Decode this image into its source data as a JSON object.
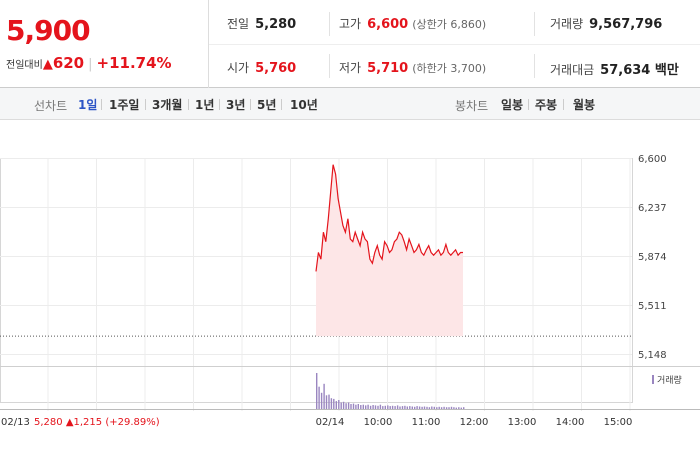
{
  "summary": {
    "price": "5,900",
    "change_label": "전일대비",
    "change_arrow": "▲",
    "change_value": "620",
    "change_rate": "+11.74%",
    "prev_close_label": "전일",
    "prev_close": "5,280",
    "open_label": "시가",
    "open": "5,760",
    "high_label": "고가",
    "high": "6,600",
    "upper_limit": "(상한가 6,860)",
    "low_label": "저가",
    "low": "5,710",
    "lower_limit": "(하한가 3,700)",
    "volume_label": "거래량",
    "volume": "9,567,796",
    "amount_label": "거래대금",
    "amount": "57,634 백만"
  },
  "tabs": {
    "line_label": "선차트",
    "line_tabs": [
      "1일",
      "1주일",
      "3개월",
      "1년",
      "3년",
      "5년",
      "10년"
    ],
    "active": "1일",
    "candle_label": "봉차트",
    "candle_tabs": [
      "일봉",
      "주봉",
      "월봉"
    ]
  },
  "chart_data": {
    "type": "line",
    "y_ticks": [
      "6,600",
      "6,237",
      "5,874",
      "5,511",
      "5,148"
    ],
    "ylim": [
      5148,
      6600
    ],
    "x_ticks": [
      "02/14",
      "10:00",
      "11:00",
      "12:00",
      "13:00",
      "14:00",
      "15:00"
    ],
    "prev_day_label": "02/13",
    "prev_day_price": "5,280",
    "prev_day_arrow": "▲",
    "prev_day_change": "1,215",
    "prev_day_rate": "(+29.89%)",
    "reference_price": 5280,
    "volume_legend": "거래량",
    "series": [
      {
        "values": [
          5760,
          5900,
          5850,
          6050,
          5980,
          6150,
          6350,
          6550,
          6480,
          6300,
          6200,
          6100,
          6050,
          6150,
          6000,
          5980,
          6050,
          6000,
          5950,
          6050,
          6000,
          5980,
          5850,
          5820,
          5900,
          5950,
          5880,
          5850,
          5980,
          5950,
          5900,
          5920,
          5980,
          6000,
          6050,
          6030,
          5980,
          5920,
          6000,
          5950,
          5900,
          5920,
          5960,
          5900,
          5880,
          5920,
          5950,
          5900,
          5880,
          5900,
          5920,
          5880,
          5900,
          5960,
          5900,
          5880,
          5900,
          5920,
          5880,
          5900,
          5900
        ]
      }
    ],
    "volume": [
      100,
      62,
      45,
      70,
      38,
      40,
      30,
      28,
      22,
      25,
      18,
      20,
      16,
      18,
      14,
      15,
      12,
      14,
      11,
      12,
      10,
      12,
      9,
      11,
      10,
      9,
      12,
      8,
      9,
      10,
      8,
      9,
      8,
      10,
      7,
      8,
      9,
      7,
      8,
      7,
      6,
      8,
      7,
      6,
      7,
      6,
      5,
      7,
      6,
      5,
      6,
      5,
      6,
      5,
      5,
      6,
      5,
      4,
      5,
      4,
      5
    ]
  }
}
